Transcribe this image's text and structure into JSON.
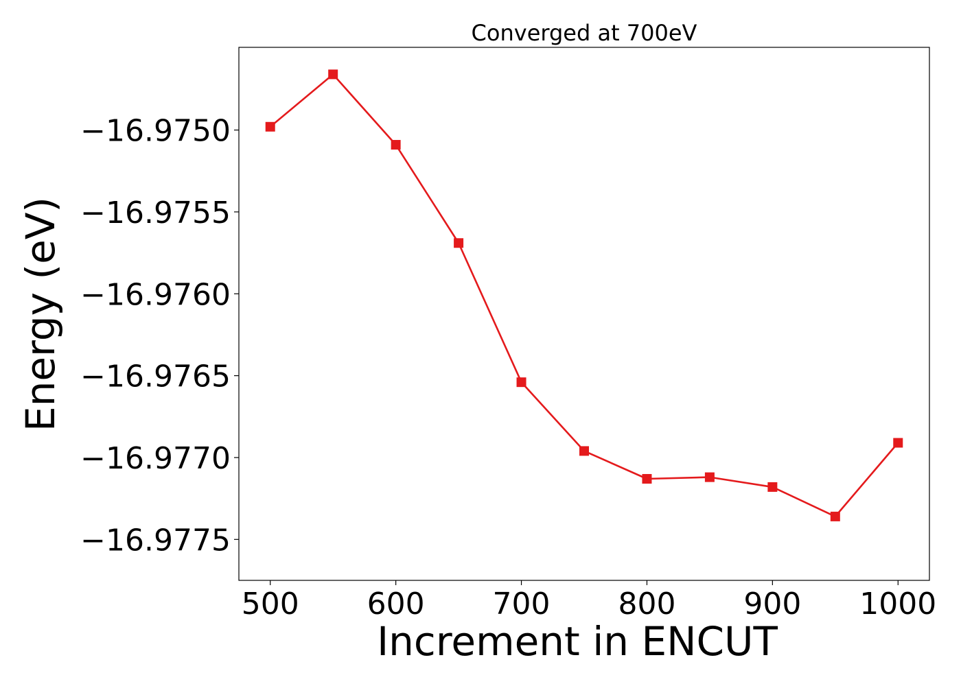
{
  "chart_data": {
    "type": "line",
    "title": "Converged at 700eV",
    "xlabel": "Increment in ENCUT",
    "ylabel": "Energy (eV)",
    "x": [
      500,
      550,
      600,
      650,
      700,
      750,
      800,
      850,
      900,
      950,
      1000
    ],
    "series": [
      {
        "values": [
          -16.97498,
          -16.97466,
          -16.97509,
          -16.97569,
          -16.97654,
          -16.97696,
          -16.97713,
          -16.97712,
          -16.97718,
          -16.97736,
          -16.97691
        ],
        "color": "#e41a1c",
        "marker": "square"
      }
    ],
    "xlim": [
      475,
      1025
    ],
    "ylim": [
      -16.97775,
      -16.974495
    ],
    "xticks": [
      500,
      600,
      700,
      800,
      900,
      1000
    ],
    "xtick_labels": [
      "500",
      "600",
      "700",
      "800",
      "900",
      "1000"
    ],
    "yticks": [
      -16.9775,
      -16.977,
      -16.9765,
      -16.976,
      -16.9755,
      -16.975
    ],
    "ytick_labels": [
      "−16.9775",
      "−16.9770",
      "−16.9765",
      "−16.9760",
      "−16.9755",
      "−16.9750"
    ],
    "grid": false,
    "legend": "none"
  }
}
